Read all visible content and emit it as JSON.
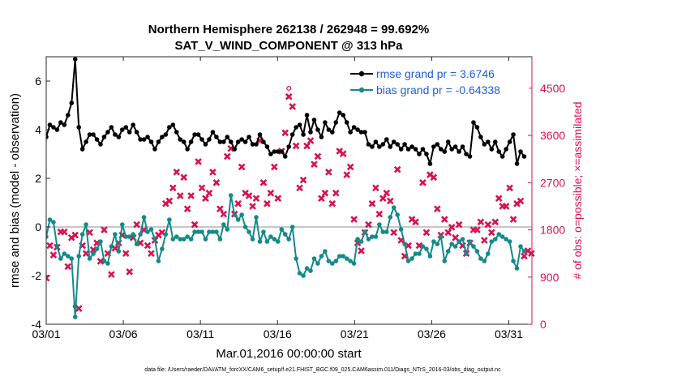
{
  "chart_data": {
    "type": "line",
    "title_line1": "Northern Hemisphere 262138 / 262948 = 99.692%",
    "title_line2": "SAT_V_WIND_COMPONENT @ 313 hPa",
    "xlabel": "Mar.01,2016 00:00:00 start",
    "ylabel_left": "rmse and bias (model - observation)",
    "ylabel_right": "# of obs: o=possible; ×=assimilated",
    "footer": "data file: /Users/raeder/DAI/ATM_forcXX/CAM6_setup/f.e21.FHIST_BGC.f09_025.CAM6assim.011/Diags_NTrS_2016-03/obs_diag_output.nc",
    "xlim": [
      0,
      31.5
    ],
    "ylim_left": [
      -4,
      7
    ],
    "ylim_right": [
      0,
      5100
    ],
    "x_ticks": [
      0,
      5,
      10,
      15,
      20,
      25,
      30
    ],
    "x_tick_labels": [
      "03/01",
      "03/06",
      "03/11",
      "03/16",
      "03/21",
      "03/26",
      "03/31"
    ],
    "y_left_ticks": [
      -4,
      -2,
      0,
      2,
      4,
      6
    ],
    "y_left_tick_labels": [
      "-4",
      "-2",
      "0",
      "2",
      "4",
      "6"
    ],
    "y_right_ticks": [
      0,
      900,
      1800,
      2700,
      3600,
      4500
    ],
    "y_right_tick_labels": [
      "0",
      "900",
      "1800",
      "2700",
      "3600",
      "4500"
    ],
    "grid": false,
    "legend_position": "top-right",
    "colors": {
      "rmse": "#000000",
      "bias": "#148a8a",
      "obs": "#d9114f",
      "zero_line": "#b4b4b4",
      "legend_text": "#1f5fd6"
    },
    "series": [
      {
        "name": "rmse grand pr = 3.6746",
        "axis": "left",
        "values": [
          3.7,
          4.2,
          4.1,
          4.0,
          4.3,
          4.2,
          4.6,
          5.1,
          6.9,
          4.1,
          3.2,
          3.5,
          3.8,
          3.8,
          3.6,
          3.4,
          3.7,
          3.9,
          4.1,
          3.8,
          3.7,
          4.0,
          4.1,
          3.9,
          4.2,
          3.9,
          3.6,
          3.6,
          3.7,
          3.5,
          3.2,
          3.5,
          3.7,
          3.8,
          4.1,
          4.2,
          3.9,
          3.6,
          3.5,
          3.2,
          3.5,
          3.8,
          3.8,
          3.6,
          3.4,
          3.6,
          3.9,
          3.7,
          3.5,
          3.5,
          3.7,
          3.5,
          3.2,
          3.5,
          3.6,
          3.5,
          3.7,
          3.4,
          3.4,
          3.8,
          3.5,
          3.3,
          3.0,
          3.1,
          3.1,
          3.1,
          2.9,
          3.3,
          3.8,
          4.1,
          4.2,
          3.8,
          4.6,
          3.9,
          4.4,
          4.0,
          3.7,
          4.3,
          4.0,
          3.9,
          4.3,
          4.7,
          4.6,
          4.3,
          3.9,
          4.1,
          4.0,
          3.9,
          3.9,
          3.4,
          3.3,
          3.5,
          3.3,
          3.4,
          3.6,
          3.3,
          3.5,
          3.4,
          3.2,
          3.4,
          3.2,
          3.3,
          3.2,
          3.0,
          3.2,
          3.0,
          2.6,
          3.3,
          3.4,
          3.2,
          3.1,
          3.5,
          3.2,
          3.3,
          3.1,
          3.3,
          3.0,
          2.9,
          4.3,
          4.1,
          3.7,
          3.4,
          3.5,
          3.2,
          3.5,
          3.1,
          2.9,
          3.2,
          3.5,
          3.8,
          2.6,
          3.1,
          2.9
        ]
      },
      {
        "name": "bias grand pr = -0.64338",
        "axis": "left",
        "values": [
          -0.4,
          0.3,
          0.2,
          -0.8,
          -1.3,
          -1.1,
          -1.2,
          -1.3,
          -3.7,
          -1.2,
          -0.3,
          0.1,
          -1.3,
          -1.1,
          -0.9,
          -0.6,
          -1.4,
          -1.5,
          -0.8,
          -0.3,
          -1.0,
          0.1,
          -0.4,
          -0.4,
          -0.3,
          -0.7,
          -0.3,
          0.4,
          -0.2,
          -0.1,
          -0.5,
          -1.4,
          -0.9,
          -0.3,
          0.3,
          -0.5,
          -0.4,
          -0.5,
          -0.5,
          -0.4,
          -0.5,
          -0.2,
          -0.2,
          -0.2,
          -0.5,
          -0.2,
          -0.2,
          -0.2,
          -0.5,
          0.1,
          -0.1,
          1.3,
          0.5,
          0.3,
          0.5,
          0.0,
          -0.2,
          -0.5,
          0.4,
          -0.6,
          -0.2,
          -0.6,
          -0.4,
          -0.5,
          -0.6,
          -0.1,
          -0.3,
          -0.5,
          0.0,
          -1.3,
          -1.9,
          -2.0,
          -1.7,
          -1.8,
          -1.3,
          -1.5,
          -1.2,
          -1.0,
          -1.4,
          -1.5,
          -1.4,
          -1.2,
          -1.2,
          -1.3,
          -1.4,
          -1.5,
          -0.5,
          -0.6,
          -0.2,
          -0.5,
          -0.4,
          -0.4,
          0.1,
          -0.2,
          -0.2,
          0.4,
          0.8,
          0.5,
          -0.1,
          -0.7,
          -1.4,
          -1.3,
          -1.1,
          -1.1,
          -0.8,
          -0.9,
          -1.2,
          -0.6,
          -0.7,
          -0.4,
          -1.4,
          -1.0,
          -0.7,
          -0.8,
          -0.6,
          -0.5,
          -1.1,
          -0.6,
          -0.8,
          -1.0,
          -1.3,
          -1.4,
          -1.1,
          -0.6,
          -0.5,
          -0.3,
          -0.4,
          -0.5,
          -0.6,
          -1.4,
          -1.7,
          -0.8,
          -1.0
        ]
      },
      {
        "name": "# of obs possible/assimilated",
        "axis": "right",
        "values": [
          880,
          1500,
          1320,
          1470,
          1760,
          1760,
          1100,
          1650,
          1700,
          300,
          1500,
          1350,
          1750,
          1420,
          1550,
          1200,
          1800,
          1350,
          950,
          1450,
          1550,
          1700,
          1350,
          1000,
          1650,
          1900,
          1550,
          1800,
          1500,
          1350,
          1600,
          1700,
          1750,
          2300,
          2350,
          2600,
          2900,
          2450,
          2800,
          2200,
          2450,
          1900,
          3100,
          2600,
          2400,
          2500,
          2900,
          2700,
          2200,
          2100,
          3200,
          3350,
          2100,
          2300,
          3000,
          2500,
          2450,
          2250,
          2400,
          3500,
          2700,
          2300,
          2500,
          3000,
          2400,
          3300,
          3650,
          4340,
          4150,
          3400,
          2600,
          2750,
          3400,
          3500,
          3050,
          3200,
          2400,
          2500,
          2900,
          2300,
          2500,
          3300,
          3250,
          2850,
          3000,
          2000,
          1550,
          1400,
          1750,
          1900,
          2300,
          2600,
          2100,
          2400,
          2500,
          2350,
          1750,
          2950,
          1600,
          1300,
          1500,
          2000,
          1950,
          1500,
          2700,
          1750,
          2850,
          2800,
          2200,
          1700,
          2000,
          1750,
          1850,
          1650,
          1900,
          1500,
          1350,
          1550,
          1800,
          1800,
          1950,
          1600,
          1900,
          1750,
          1950,
          2400,
          2250,
          2250,
          2600,
          2000,
          2300,
          2350,
          1300,
          1400,
          1350
        ]
      }
    ]
  }
}
